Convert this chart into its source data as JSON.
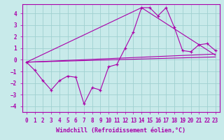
{
  "xlabel": "Windchill (Refroidissement éolien,°C)",
  "ylabel": "",
  "xlim": [
    -0.5,
    23.5
  ],
  "ylim": [
    -4.5,
    4.8
  ],
  "xticks": [
    0,
    1,
    2,
    3,
    4,
    5,
    6,
    7,
    8,
    9,
    10,
    11,
    12,
    13,
    14,
    15,
    16,
    17,
    18,
    19,
    20,
    21,
    22,
    23
  ],
  "yticks": [
    -4,
    -3,
    -2,
    -1,
    0,
    1,
    2,
    3,
    4
  ],
  "bg_color": "#c8eaea",
  "grid_color": "#a0d0d0",
  "line_color": "#aa00aa",
  "main_x": [
    0,
    1,
    2,
    3,
    4,
    5,
    6,
    7,
    8,
    9,
    10,
    11,
    12,
    13,
    14,
    15,
    16,
    17,
    18,
    19,
    20,
    21,
    22,
    23
  ],
  "main_y": [
    -0.2,
    -0.9,
    -1.8,
    -2.6,
    -1.8,
    -1.4,
    -1.5,
    -3.8,
    -2.4,
    -2.6,
    -0.6,
    -0.4,
    1.0,
    2.4,
    4.5,
    4.5,
    3.8,
    4.5,
    2.8,
    0.8,
    0.7,
    1.3,
    1.4,
    0.8
  ],
  "trend_lines": [
    [
      [
        0,
        23
      ],
      [
        -0.2,
        0.25
      ]
    ],
    [
      [
        0,
        23
      ],
      [
        -0.2,
        0.5
      ]
    ],
    [
      [
        0,
        14,
        23
      ],
      [
        -0.2,
        4.5,
        0.4
      ]
    ]
  ],
  "font_family": "monospace",
  "tick_fontsize": 5.5,
  "label_fontsize": 6.0
}
